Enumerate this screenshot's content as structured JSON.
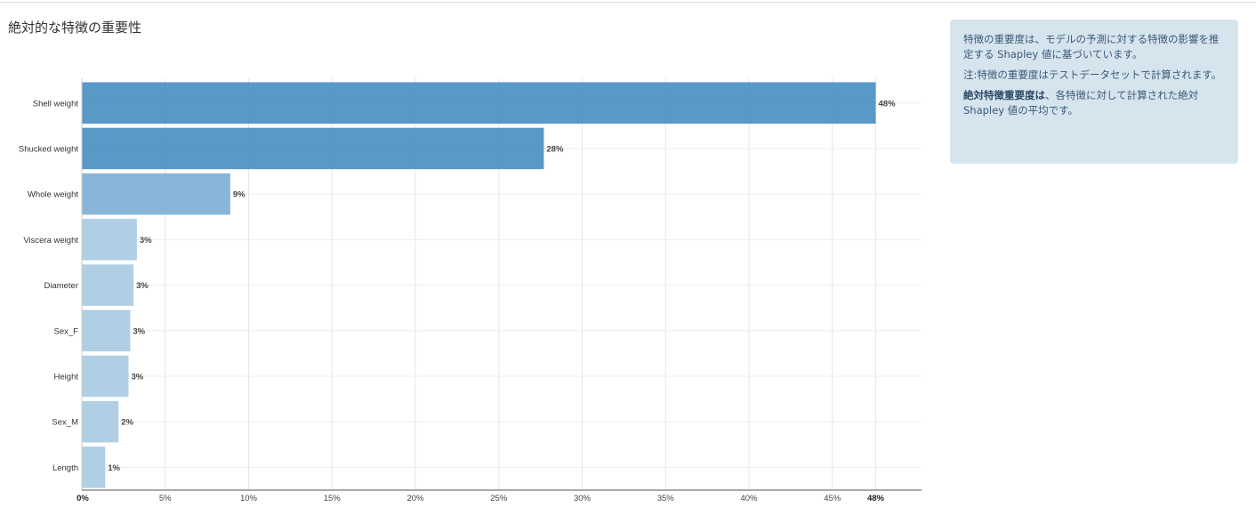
{
  "page": {
    "title": "絶対的な特徴の重要性"
  },
  "info_panel": {
    "para1": "特徴の重要度は、モデルの予測に対する特徴の影響を推定する Shapley 値に基づいています。",
    "para2": "注:特徴の重要度はテストデータセットで計算されます。",
    "para3_bold": "絶対特徴重要度は",
    "para3_rest": "、各特徴に対して計算された絶対 Shapley 値の平均です。"
  },
  "chart_data": {
    "type": "bar",
    "orientation": "horizontal",
    "title": "",
    "xlabel": "",
    "ylabel": "",
    "categories": [
      "Shell weight",
      "Shucked weight",
      "Whole weight",
      "Viscera weight",
      "Diameter",
      "Sex_F",
      "Height",
      "Sex_M",
      "Length"
    ],
    "values": [
      47.6,
      27.7,
      8.9,
      3.3,
      3.1,
      2.9,
      2.8,
      2.2,
      1.4
    ],
    "value_labels": [
      "48%",
      "28%",
      "9%",
      "3%",
      "3%",
      "3%",
      "3%",
      "2%",
      "1%"
    ],
    "xlim": [
      0,
      50
    ],
    "x_ticks": [
      {
        "value": 0,
        "label": "0%"
      },
      {
        "value": 5,
        "label": "5%"
      },
      {
        "value": 10,
        "label": "10%"
      },
      {
        "value": 15,
        "label": "15%"
      },
      {
        "value": 20,
        "label": "20%"
      },
      {
        "value": 25,
        "label": "25%"
      },
      {
        "value": 30,
        "label": "30%"
      },
      {
        "value": 35,
        "label": "35%"
      },
      {
        "value": 40,
        "label": "40%"
      },
      {
        "value": 45,
        "label": "45%"
      },
      {
        "value": 47.6,
        "label": "48%"
      }
    ],
    "bold_ticks": [
      "0%",
      "48%"
    ],
    "grid": true,
    "legend": "none",
    "colors": {
      "high": "#4a90c3",
      "mid": "#7fb0d5",
      "low": "#a9cbe3"
    },
    "bar_color_levels": [
      "high",
      "high",
      "mid",
      "low",
      "low",
      "low",
      "low",
      "low",
      "low"
    ]
  }
}
